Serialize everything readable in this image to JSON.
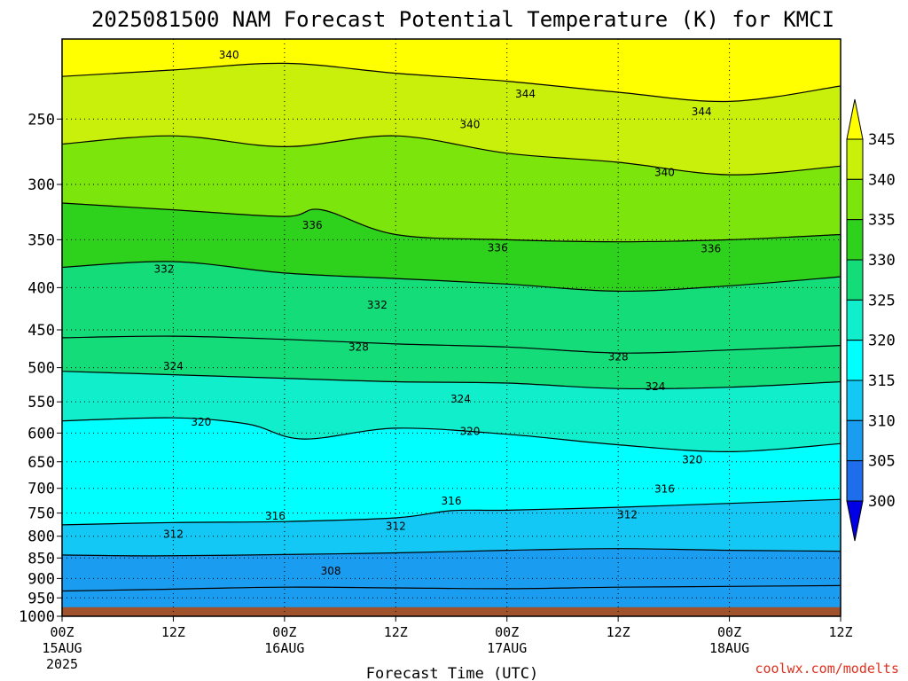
{
  "chart_data": {
    "type": "contour",
    "title": "2025081500 NAM Forecast Potential Temperature (K) for KMCI",
    "xlabel": "Forecast Time (UTC)",
    "ylabel": "",
    "credit": "coolwx.com/modelts",
    "x_ticks": [
      {
        "hours": 0,
        "label": "00Z",
        "sub": "15AUG",
        "sub2": "2025"
      },
      {
        "hours": 12,
        "label": "12Z",
        "sub": "",
        "sub2": ""
      },
      {
        "hours": 24,
        "label": "00Z",
        "sub": "16AUG",
        "sub2": ""
      },
      {
        "hours": 36,
        "label": "12Z",
        "sub": "",
        "sub2": ""
      },
      {
        "hours": 48,
        "label": "00Z",
        "sub": "17AUG",
        "sub2": ""
      },
      {
        "hours": 60,
        "label": "12Z",
        "sub": "",
        "sub2": ""
      },
      {
        "hours": 72,
        "label": "00Z",
        "sub": "18AUG",
        "sub2": ""
      },
      {
        "hours": 84,
        "label": "12Z",
        "sub": "",
        "sub2": ""
      }
    ],
    "xlim": [
      0,
      84
    ],
    "y_ticks": [
      250,
      300,
      350,
      400,
      450,
      500,
      550,
      600,
      650,
      700,
      750,
      800,
      850,
      900,
      950,
      1000
    ],
    "ylim_hpa": [
      200,
      1000
    ],
    "y_scale": "log-pressure (inverted)",
    "grid": true,
    "colorbar": {
      "levels": [
        300,
        305,
        310,
        315,
        320,
        325,
        330,
        335,
        340,
        345
      ],
      "colors": [
        "#0a3cf0",
        "#1e6eeb",
        "#1a9cf0",
        "#14c8f5",
        "#00ffff",
        "#11eecc",
        "#14dc78",
        "#2ed21c",
        "#7be50c",
        "#c8f00a",
        "#ffff00"
      ]
    },
    "surface_color": "#a0522d",
    "contours": [
      {
        "value": 308,
        "points": [
          [
            0,
            932
          ],
          [
            10,
            928
          ],
          [
            24,
            922
          ],
          [
            36,
            924
          ],
          [
            48,
            926
          ],
          [
            60,
            922
          ],
          [
            72,
            920
          ],
          [
            84,
            918
          ]
        ],
        "label_at": 22
      },
      {
        "value": 312,
        "points": [
          [
            0,
            843
          ],
          [
            10,
            845
          ],
          [
            24,
            842
          ],
          [
            36,
            838
          ],
          [
            48,
            832
          ],
          [
            60,
            828
          ],
          [
            72,
            832
          ],
          [
            84,
            834
          ]
        ],
        "label_at": 9
      },
      {
        "value": 316,
        "points": [
          [
            0,
            775
          ],
          [
            12,
            770
          ],
          [
            24,
            768
          ],
          [
            36,
            760
          ],
          [
            42,
            745
          ],
          [
            48,
            744
          ],
          [
            60,
            738
          ],
          [
            72,
            730
          ],
          [
            84,
            722
          ]
        ],
        "label_at": 18
      },
      {
        "value": 320,
        "points": [
          [
            0,
            580
          ],
          [
            12,
            575
          ],
          [
            20,
            585
          ],
          [
            26,
            610
          ],
          [
            36,
            592
          ],
          [
            48,
            602
          ],
          [
            60,
            620
          ],
          [
            72,
            632
          ],
          [
            84,
            618
          ]
        ],
        "label_at": 11
      },
      {
        "value": 324,
        "points": [
          [
            0,
            505
          ],
          [
            12,
            510
          ],
          [
            24,
            515
          ],
          [
            36,
            520
          ],
          [
            48,
            522
          ],
          [
            60,
            530
          ],
          [
            72,
            528
          ],
          [
            84,
            520
          ]
        ],
        "label_at": 9
      },
      {
        "value": 328,
        "points": [
          [
            0,
            460
          ],
          [
            12,
            458
          ],
          [
            24,
            462
          ],
          [
            36,
            468
          ],
          [
            48,
            472
          ],
          [
            60,
            480
          ],
          [
            72,
            476
          ],
          [
            84,
            470
          ]
        ],
        "label_at": 24
      },
      {
        "value": 332,
        "points": [
          [
            0,
            378
          ],
          [
            12,
            372
          ],
          [
            24,
            384
          ],
          [
            36,
            390
          ],
          [
            48,
            396
          ],
          [
            60,
            404
          ],
          [
            72,
            398
          ],
          [
            84,
            388
          ]
        ],
        "label_at": 8
      },
      {
        "value": 336,
        "points": [
          [
            0,
            316
          ],
          [
            12,
            322
          ],
          [
            24,
            328
          ],
          [
            28,
            322
          ],
          [
            36,
            345
          ],
          [
            48,
            350
          ],
          [
            60,
            352
          ],
          [
            72,
            350
          ],
          [
            84,
            345
          ]
        ],
        "label_at": 27
      },
      {
        "value": 340,
        "points": [
          [
            0,
            268
          ],
          [
            12,
            262
          ],
          [
            24,
            270
          ],
          [
            36,
            262
          ],
          [
            48,
            275
          ],
          [
            60,
            282
          ],
          [
            72,
            292
          ],
          [
            84,
            285
          ]
        ],
        "label_at": 71
      },
      {
        "value": 344,
        "points": [
          [
            0,
            222
          ],
          [
            12,
            218
          ],
          [
            24,
            214
          ],
          [
            36,
            220
          ],
          [
            48,
            225
          ],
          [
            60,
            232
          ],
          [
            72,
            238
          ],
          [
            84,
            228
          ]
        ],
        "label_at": 50
      }
    ],
    "contour_labels": [
      {
        "value": "340",
        "hours": 18,
        "hpa": 209
      },
      {
        "value": "344",
        "hours": 50,
        "hpa": 233
      },
      {
        "value": "340",
        "hours": 44,
        "hpa": 254
      },
      {
        "value": "344",
        "hours": 69,
        "hpa": 245
      },
      {
        "value": "340",
        "hours": 65,
        "hpa": 290
      },
      {
        "value": "336",
        "hours": 27,
        "hpa": 336
      },
      {
        "value": "336",
        "hours": 47,
        "hpa": 358
      },
      {
        "value": "336",
        "hours": 70,
        "hpa": 359
      },
      {
        "value": "332",
        "hours": 11,
        "hpa": 380
      },
      {
        "value": "332",
        "hours": 34,
        "hpa": 420
      },
      {
        "value": "328",
        "hours": 32,
        "hpa": 472
      },
      {
        "value": "328",
        "hours": 60,
        "hpa": 485
      },
      {
        "value": "324",
        "hours": 12,
        "hpa": 498
      },
      {
        "value": "324",
        "hours": 64,
        "hpa": 527
      },
      {
        "value": "324",
        "hours": 43,
        "hpa": 546
      },
      {
        "value": "320",
        "hours": 15,
        "hpa": 582
      },
      {
        "value": "320",
        "hours": 44,
        "hpa": 597
      },
      {
        "value": "320",
        "hours": 68,
        "hpa": 646
      },
      {
        "value": "316",
        "hours": 65,
        "hpa": 701
      },
      {
        "value": "316",
        "hours": 42,
        "hpa": 725
      },
      {
        "value": "316",
        "hours": 23,
        "hpa": 756
      },
      {
        "value": "312",
        "hours": 61,
        "hpa": 753
      },
      {
        "value": "312",
        "hours": 36,
        "hpa": 778
      },
      {
        "value": "312",
        "hours": 12,
        "hpa": 796
      },
      {
        "value": "308",
        "hours": 29,
        "hpa": 882
      }
    ]
  }
}
